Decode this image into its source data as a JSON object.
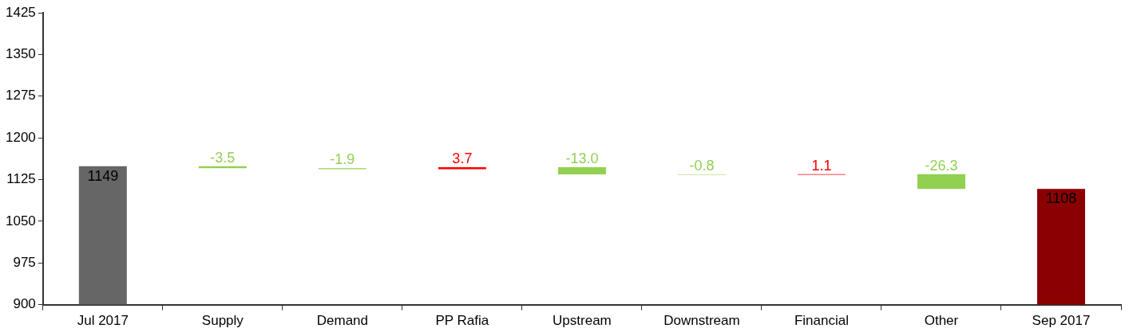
{
  "chart_data": {
    "type": "bar",
    "categories": [
      "Jul 2017",
      "Supply",
      "Demand",
      "PP Rafia",
      "Upstream",
      "Downstream",
      "Financial",
      "Other",
      "Sep 2017"
    ],
    "values": [
      1149,
      -3.5,
      -1.9,
      3.7,
      -13.0,
      -0.8,
      1.1,
      -26.3,
      1108
    ],
    "base": [
      null,
      1149,
      1145.5,
      1143.6,
      1147.3,
      1134.3,
      1133.5,
      1134.6,
      null
    ],
    "colors": [
      "#666666",
      "#92d050",
      "#92d050",
      "#ff0000",
      "#92d050",
      "#92d050",
      "#ff0000",
      "#92d050",
      "#8b0000"
    ],
    "value_labels": [
      "1149",
      "-3.5",
      "-1.9",
      "3.7",
      "-13.0",
      "-0.8",
      "1.1",
      "-26.3",
      "1108"
    ],
    "ylim": [
      900,
      1425
    ],
    "yticks": [
      900,
      975,
      1050,
      1125,
      1200,
      1275,
      1350,
      1425
    ],
    "grid": false,
    "legend": false
  }
}
